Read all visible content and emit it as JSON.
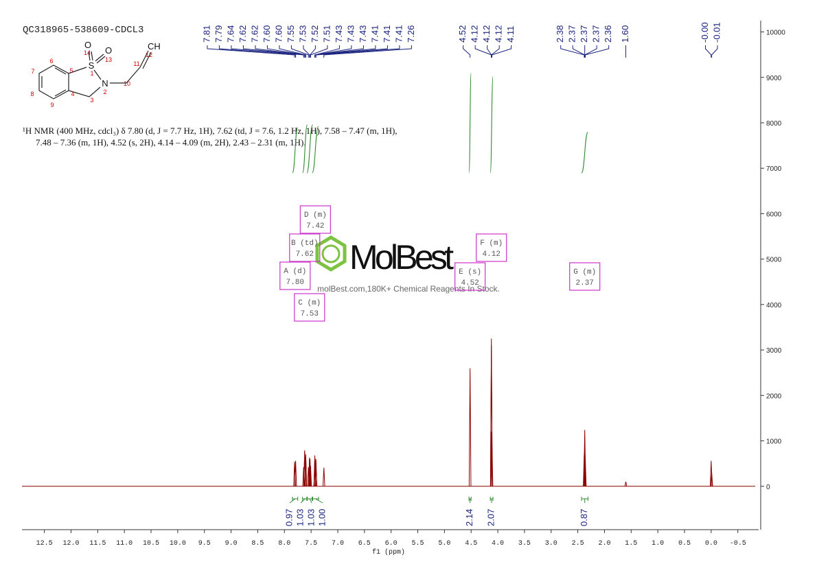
{
  "title": "QC318965-538609-CDCL3",
  "structure": {
    "atoms": [
      "O",
      "O",
      "S",
      "N",
      "CH"
    ],
    "numbers": [
      "14",
      "13",
      "1",
      "2",
      "10",
      "11",
      "12",
      "3",
      "4",
      "5",
      "6",
      "7",
      "8",
      "9"
    ]
  },
  "description": [
    "¹H NMR (400 MHz, cdcl₃) δ 7.80 (d, J = 7.7 Hz, 1H), 7.62 (td, J = 7.6, 1.2 Hz, 1H), 7.58 – 7.47 (m, 1H),",
    "7.48 – 7.36 (m, 1H), 4.52 (s, 2H), 4.14 – 4.09 (m, 2H), 2.43 – 2.31 (m, 1H)."
  ],
  "watermark": {
    "brand": "MolBest",
    "tagline": "molBest.com,180K+ Chemical Reagents In Stock."
  },
  "chart_data": {
    "type": "nmr",
    "x_label": "f1 (ppm)",
    "xlim": [
      12.92,
      -0.89
    ],
    "xticks": [
      12.5,
      {
        "value": 12,
        "label": "12.0"
      },
      11.5,
      {
        "value": 11,
        "label": "11.0"
      },
      10.5,
      {
        "value": 10,
        "label": "10.0"
      },
      9.5,
      {
        "value": 9,
        "label": "9.0"
      },
      8.5,
      {
        "value": 8,
        "label": "8.0"
      },
      7.5,
      {
        "value": 7,
        "label": "7.0"
      },
      6.5,
      {
        "value": 6,
        "label": "6.0"
      },
      5.5,
      {
        "value": 5,
        "label": "5.0"
      },
      4.5,
      {
        "value": 4,
        "label": "4.0"
      },
      3.5,
      {
        "value": 3,
        "label": "3.0"
      },
      2.5,
      {
        "value": 2,
        "label": "2.0"
      },
      1.5,
      {
        "value": 1,
        "label": "1.0"
      },
      0.5,
      {
        "value": 0,
        "label": "0.0"
      },
      -0.5
    ],
    "ylim": [
      -955,
      10250
    ],
    "yticks": [
      0,
      1000,
      2000,
      3000,
      4000,
      5000,
      6000,
      7000,
      8000,
      9000,
      10000
    ],
    "color": "#8b0000",
    "peak_labels": [
      {
        "value": 7.81,
        "label": "7.81"
      },
      {
        "value": 7.79,
        "label": "7.79"
      },
      {
        "value": 7.64,
        "label": "7.64"
      },
      {
        "value": 7.62,
        "label": "7.62"
      },
      {
        "value": 7.62,
        "label": "7.62"
      },
      {
        "value": 7.6,
        "label": "7.60"
      },
      {
        "value": 7.6,
        "label": "7.60"
      },
      {
        "value": 7.55,
        "label": "7.55"
      },
      {
        "value": 7.53,
        "label": "7.53"
      },
      {
        "value": 7.52,
        "label": "7.52"
      },
      {
        "value": 7.51,
        "label": "7.51"
      },
      {
        "value": 7.43,
        "label": "7.43"
      },
      {
        "value": 7.43,
        "label": "7.43"
      },
      {
        "value": 7.43,
        "label": "7.43"
      },
      {
        "value": 7.41,
        "label": "7.41"
      },
      {
        "value": 7.41,
        "label": "7.41"
      },
      {
        "value": 7.41,
        "label": "7.41"
      },
      {
        "value": 7.26,
        "label": "7.26"
      },
      {
        "value": 4.52,
        "label": "4.52"
      },
      {
        "value": 4.12,
        "label": "4.12"
      },
      {
        "value": 4.12,
        "label": "4.12"
      },
      {
        "value": 4.12,
        "label": "4.12"
      },
      {
        "value": 4.11,
        "label": "4.11"
      },
      {
        "value": 2.38,
        "label": "2.38"
      },
      {
        "value": 2.37,
        "label": "2.37"
      },
      {
        "value": 2.37,
        "label": "2.37"
      },
      {
        "value": 2.37,
        "label": "2.37"
      },
      {
        "value": 2.36,
        "label": "2.36"
      },
      {
        "value": 1.6,
        "label": "1.60"
      },
      {
        "value": 0,
        "label": "-0.00"
      },
      {
        "value": -0.01,
        "label": "-0.01"
      }
    ],
    "values": [
      540,
      560,
      420,
      790,
      760,
      700,
      650,
      420,
      630,
      600,
      450,
      500,
      680,
      620,
      600,
      560,
      400,
      410,
      2600,
      1200,
      3250,
      3100,
      1000,
      700,
      1000,
      1240,
      900,
      600,
      100,
      560,
      300
    ],
    "multiplets": [
      {
        "name": "A (d)",
        "shift": {
          "value": 7.8,
          "label": "7.80"
        }
      },
      {
        "name": "B (td)",
        "shift": {
          "value": 7.62,
          "label": "7.62"
        }
      },
      {
        "name": "C (m)",
        "shift": {
          "value": 7.53,
          "label": "7.53"
        }
      },
      {
        "name": "D (m)",
        "shift": {
          "value": 7.42,
          "label": "7.42"
        }
      },
      {
        "name": "E (s)",
        "shift": {
          "value": 4.52,
          "label": "4.52"
        }
      },
      {
        "name": "F (m)",
        "shift": {
          "value": 4.12,
          "label": "4.12"
        }
      },
      {
        "name": "G (m)",
        "shift": {
          "value": 2.37,
          "label": "2.37"
        }
      }
    ],
    "integrals": {
      "values": [
        0.97,
        1.03,
        1.03,
        1,
        2.14,
        2.07,
        0.87
      ],
      "value_labels": [
        "0.97",
        "1.03",
        "1.03",
        "1.00",
        "2.14",
        "2.07",
        "0.87"
      ],
      "ranges": [
        [
          7.85,
          7.75
        ],
        [
          7.66,
          7.57
        ],
        [
          7.58,
          7.47
        ],
        [
          7.48,
          7.36
        ],
        [
          4.54,
          4.5
        ],
        [
          4.14,
          4.09
        ],
        [
          2.43,
          2.31
        ]
      ]
    }
  }
}
